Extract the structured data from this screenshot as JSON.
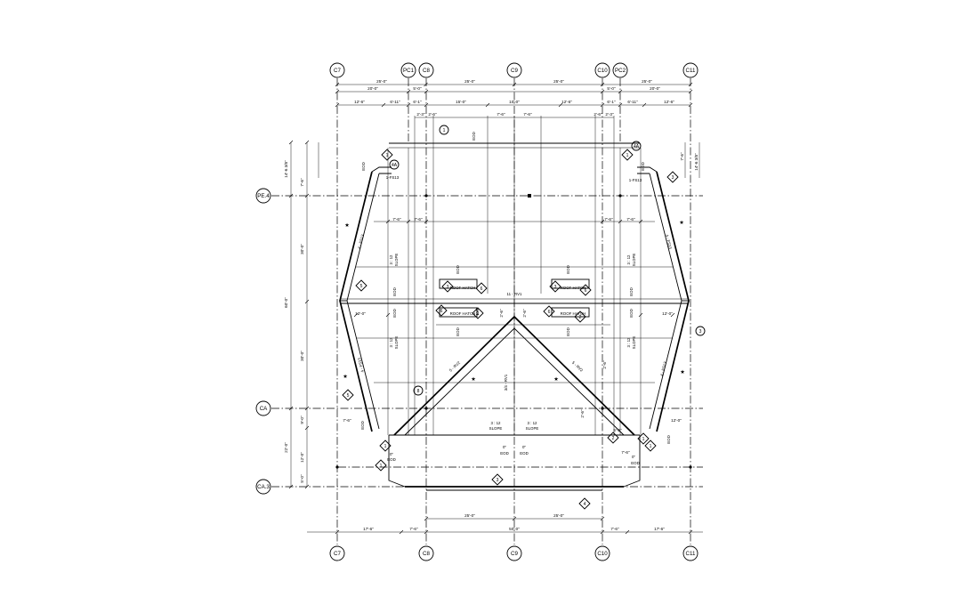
{
  "grid": {
    "columns": [
      "C7",
      "PC1",
      "C8",
      "C9",
      "C10",
      "PC2",
      "C11"
    ],
    "columns_bottom": [
      "C7",
      "C8",
      "C9",
      "C10",
      "C11"
    ],
    "rows": [
      "PE.4",
      "CA",
      "CA.3"
    ]
  },
  "dims": {
    "top1": [
      "25'-0\"",
      "25'-0\"",
      "25'-0\"",
      "25'-0\""
    ],
    "top2": [
      "20'-0\"",
      "5'-0\"",
      "5'-0\"",
      "20'-0\""
    ],
    "top3": [
      "12'-6\"",
      "6'-11\"",
      "6'-1\"",
      "15'-0\"",
      "10'-0\"",
      "12'-6\"",
      "6'-1\"",
      "6'-11\"",
      "12'-6\""
    ],
    "top4": [
      "2'-3\"",
      "2'-6\"",
      "7'-6\"",
      "7'-6\"",
      "2'-6\"",
      "2'-3\""
    ],
    "bottom1": [
      "25'-0\"",
      "25'-0\""
    ],
    "bottom2": [
      "17'-6\"",
      "7'-6\"",
      "50'-0\"",
      "7'-6\"",
      "17'-6\""
    ],
    "left": [
      "14'-6 3/8\"",
      "7'-6\"",
      "30'-0\"",
      "60'-0\"",
      "30'-0\"",
      "9'-0\"",
      "22'-0\"",
      "12'-0\"",
      "5'-0\""
    ],
    "right": [
      "14'-6 3/8\"",
      "7'-6\""
    ],
    "inner": [
      "7'-6\"",
      "7'-6\"",
      "7'-6\"",
      "7'-6\"",
      "12'-0\"",
      "12'-0\"",
      "12'-0\"",
      "2'-6\"",
      "2'-6\"",
      "7'-6\"",
      "7'-6\"",
      "2'-6\"",
      "2'-6\""
    ]
  },
  "notes": {
    "slope_a": "3 : 12",
    "slope_b": "3 : 12",
    "slope_c": "3 : 12",
    "slope_d": "3 : 12",
    "slope_e": "3 : 12",
    "slope_f": "3 : 12",
    "slope_word": "SLOPE",
    "eod": "EOD",
    "eod_zero": "0\"",
    "roof_hatch": "ROOF HATCH",
    "ridge": "11 - RV1",
    "ridge_vert": "3/4 - RV1",
    "hip_left": "5 - RV2",
    "hip_right": "5 - RV2",
    "rafter_left_top": "4 - FS13",
    "rafter_left_bot": "4 - FS13",
    "rafter_right_top": "4 - FS13",
    "rafter_right_bot": "4 - FS13",
    "fs_label_left": "1-FS13",
    "fs_label_right": "1-FS13",
    "ridge_offset": "1'-6\"",
    "eave_sq": "5'-2\""
  },
  "markers": {
    "tags": [
      "1",
      "2",
      "3",
      "4",
      "5",
      "6",
      "7",
      "8",
      "9",
      "10",
      "11"
    ],
    "detail_a": "4A",
    "star": "★"
  }
}
